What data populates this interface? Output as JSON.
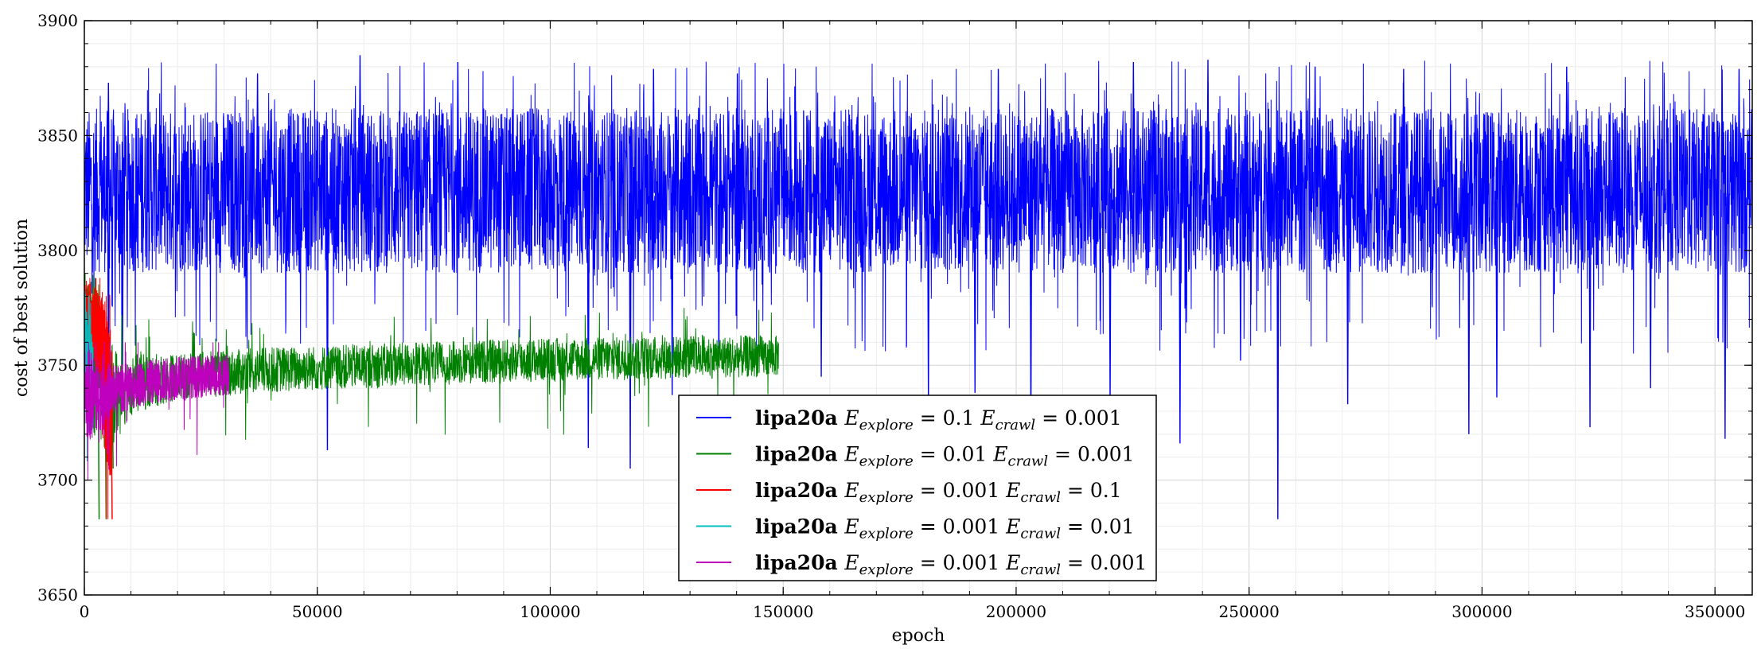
{
  "chart_data": {
    "type": "line",
    "title": "",
    "xlabel": "epoch",
    "ylabel": "cost of best solution",
    "xlim": [
      0,
      358000
    ],
    "ylim": [
      3650,
      3900
    ],
    "xticks": [
      0,
      50000,
      100000,
      150000,
      200000,
      250000,
      300000,
      350000
    ],
    "yticks": [
      3650,
      3700,
      3750,
      3800,
      3850,
      3900
    ],
    "xtick_labels": [
      "0",
      "50000",
      "100000",
      "150000",
      "200000",
      "250000",
      "300000",
      "350000"
    ],
    "ytick_labels": [
      "3650",
      "3700",
      "3750",
      "3800",
      "3850",
      "3900"
    ],
    "grid": true,
    "legend_position": "lower-center",
    "series": [
      {
        "name": "lipa20a E_explore = 0.1 E_crawl = 0.001",
        "legend_label": "lipa20a E_explore = 0.1 E_crawl = 0.001",
        "color": "#0000ff",
        "x_range": [
          0,
          358000
        ],
        "band": [
          3790,
          3862
        ],
        "mean": 3825,
        "max": 3885,
        "min": 3683,
        "dips": [
          [
            5000,
            3745
          ],
          [
            8000,
            3738
          ],
          [
            52000,
            3713
          ],
          [
            108000,
            3714
          ],
          [
            117000,
            3705
          ],
          [
            126000,
            3737
          ],
          [
            158000,
            3745
          ],
          [
            181000,
            3735
          ],
          [
            191000,
            3738
          ],
          [
            203000,
            3722
          ],
          [
            220000,
            3735
          ],
          [
            235000,
            3716
          ],
          [
            248000,
            3752
          ],
          [
            256000,
            3683
          ],
          [
            271000,
            3733
          ],
          [
            297000,
            3720
          ],
          [
            303000,
            3736
          ],
          [
            323000,
            3723
          ],
          [
            336000,
            3740
          ],
          [
            352000,
            3718
          ]
        ],
        "peaks": [
          [
            5000,
            3873
          ],
          [
            37000,
            3877
          ],
          [
            59000,
            3885
          ],
          [
            80000,
            3882
          ],
          [
            122000,
            3879
          ],
          [
            140000,
            3877
          ],
          [
            196000,
            3879
          ],
          [
            225000,
            3882
          ],
          [
            241000,
            3883
          ],
          [
            264000,
            3880
          ],
          [
            283000,
            3879
          ],
          [
            318000,
            3880
          ],
          [
            355000,
            3879
          ]
        ]
      },
      {
        "name": "lipa20a E_explore = 0.01 E_crawl = 0.001",
        "legend_label": "lipa20a E_explore = 0.01 E_crawl = 0.001",
        "color": "#008000",
        "x_range": [
          0,
          149000
        ],
        "curve": [
          [
            0,
            3760,
            3790
          ],
          [
            2000,
            3720,
            3790
          ],
          [
            5000,
            3712,
            3760
          ],
          [
            10000,
            3728,
            3755
          ],
          [
            20000,
            3735,
            3755
          ],
          [
            40000,
            3738,
            3758
          ],
          [
            70000,
            3741,
            3760
          ],
          [
            100000,
            3743,
            3762
          ],
          [
            130000,
            3744,
            3763
          ],
          [
            149000,
            3745,
            3763
          ]
        ],
        "min": 3683,
        "max": 3788
      },
      {
        "name": "lipa20a E_explore = 0.001 E_crawl = 0.1",
        "legend_label": "lipa20a E_explore = 0.001 E_crawl = 0.1",
        "color": "#ff0000",
        "x_range": [
          0,
          6000
        ],
        "curve": [
          [
            0,
            3765,
            3788
          ],
          [
            2000,
            3750,
            3785
          ],
          [
            3500,
            3740,
            3780
          ],
          [
            4500,
            3710,
            3778
          ],
          [
            5500,
            3700,
            3768
          ],
          [
            6000,
            3705,
            3755
          ]
        ],
        "min": 3683,
        "max": 3788
      },
      {
        "name": "lipa20a E_explore = 0.001 E_crawl = 0.01",
        "legend_label": "lipa20a E_explore = 0.001 E_crawl = 0.01",
        "color": "#00bfbf",
        "x_range": [
          0,
          2000
        ],
        "curve": [
          [
            0,
            3725,
            3785
          ],
          [
            1000,
            3720,
            3770
          ],
          [
            2000,
            3722,
            3758
          ]
        ],
        "min": 3700,
        "max": 3785
      },
      {
        "name": "lipa20a E_explore = 0.001 E_crawl = 0.001",
        "legend_label": "lipa20a E_explore = 0.001 E_crawl = 0.001",
        "color": "#bf00bf",
        "x_range": [
          0,
          31000
        ],
        "curve": [
          [
            0,
            3715,
            3760
          ],
          [
            2000,
            3718,
            3755
          ],
          [
            6000,
            3728,
            3750
          ],
          [
            12000,
            3732,
            3752
          ],
          [
            20000,
            3735,
            3754
          ],
          [
            31000,
            3737,
            3755
          ]
        ],
        "min": 3700,
        "max": 3760
      }
    ]
  }
}
